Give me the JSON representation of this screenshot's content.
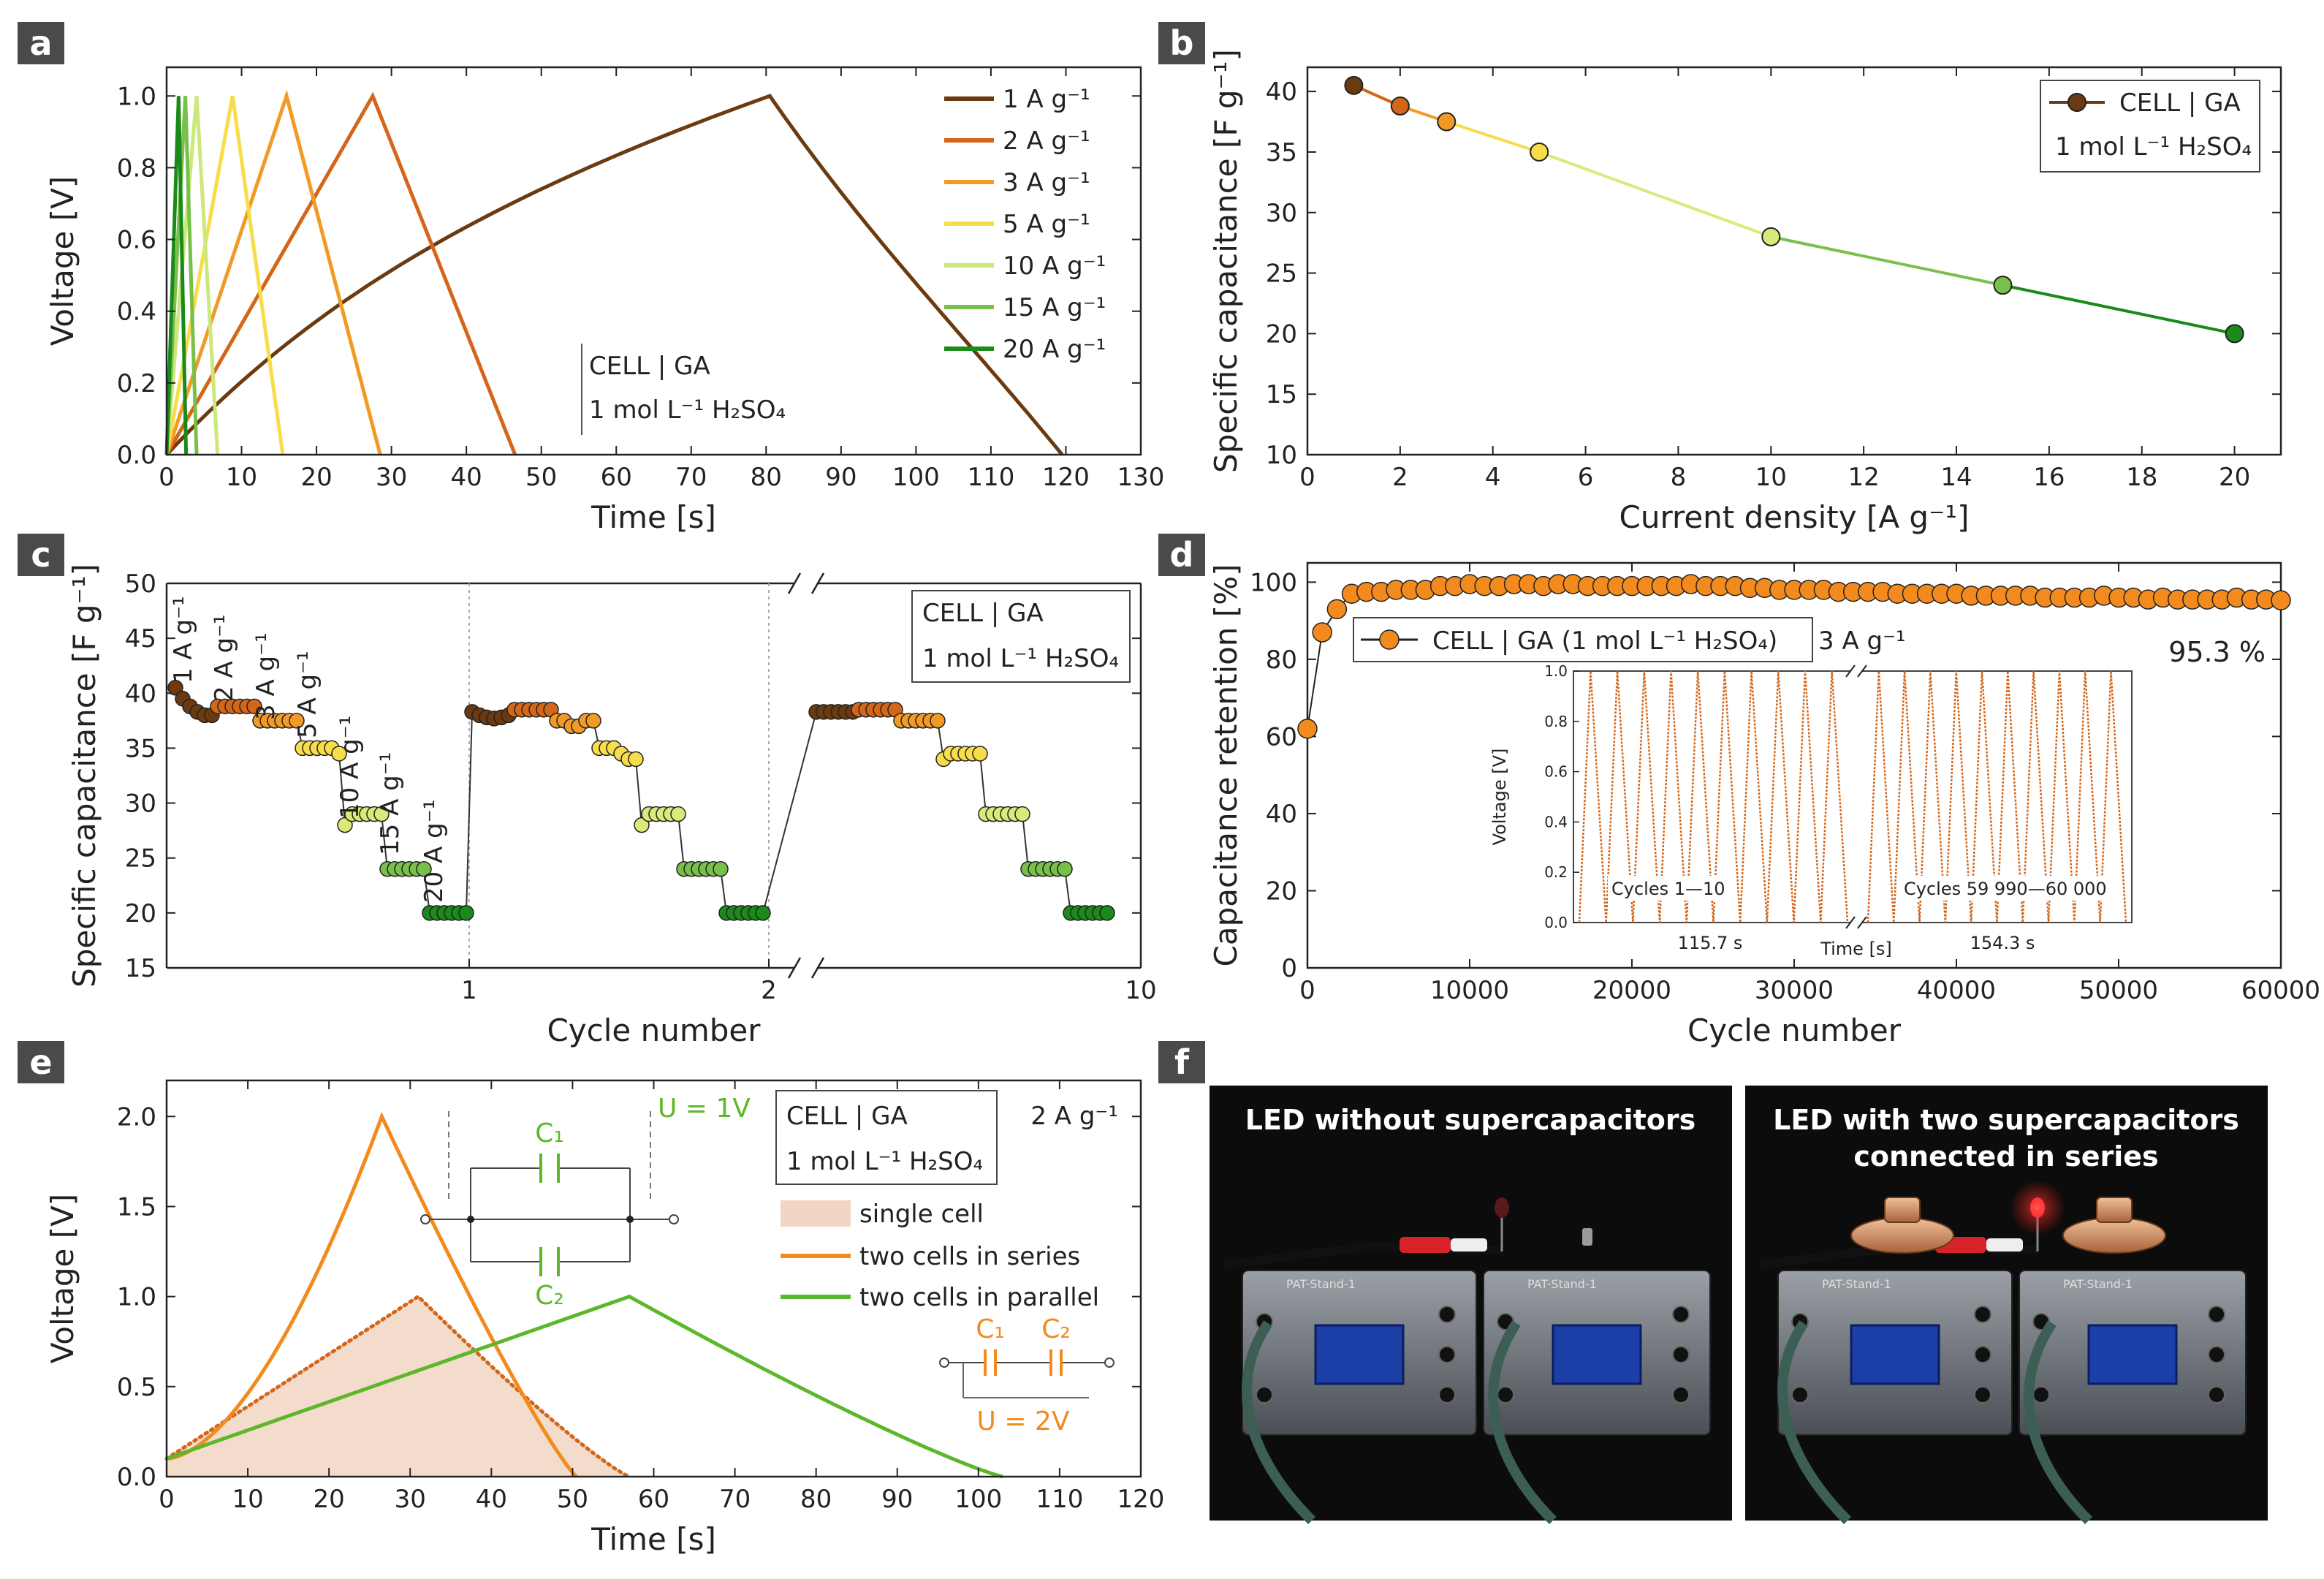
{
  "panels": {
    "a": {
      "label": "a",
      "chart_data": {
        "type": "line",
        "xlabel": "Time [s]",
        "ylabel": "Voltage [V]",
        "xlim": [
          0,
          130
        ],
        "ylim": [
          0,
          1.08
        ],
        "xticks": [
          "0",
          "10",
          "20",
          "30",
          "40",
          "50",
          "60",
          "70",
          "80",
          "90",
          "100",
          "110",
          "120",
          "130"
        ],
        "yticks": [
          "0.0",
          "0.2",
          "0.4",
          "0.6",
          "0.8",
          "1.0"
        ],
        "box_text": [
          "CELL | GA",
          "1 mol L⁻¹ H₂SO₄"
        ],
        "series": [
          {
            "name": "1 A g⁻¹",
            "color": "#6b3a10",
            "peak": [
              80.5,
              1.0
            ],
            "end": 119.5
          },
          {
            "name": "2 A g⁻¹",
            "color": "#d4661a",
            "peak": [
              27.5,
              1.0
            ],
            "end": 46.5
          },
          {
            "name": "3 A g⁻¹",
            "color": "#f29a26",
            "peak": [
              16.0,
              1.0
            ],
            "end": 28.5
          },
          {
            "name": "5 A g⁻¹",
            "color": "#f7dd4a",
            "peak": [
              8.8,
              1.0
            ],
            "end": 15.5
          },
          {
            "name": "10 A g⁻¹",
            "color": "#cde87a",
            "peak": [
              4.0,
              1.0
            ],
            "end": 6.8
          },
          {
            "name": "15 A g⁻¹",
            "color": "#79c04a",
            "peak": [
              2.5,
              1.0
            ],
            "end": 4.0
          },
          {
            "name": "20 A g⁻¹",
            "color": "#1a8a1a",
            "peak": [
              1.6,
              1.0
            ],
            "end": 2.6
          }
        ]
      }
    },
    "b": {
      "label": "b",
      "chart_data": {
        "type": "line",
        "xlabel": "Current density [A g⁻¹]",
        "ylabel": "Specific capacitance [F g⁻¹]",
        "xlim": [
          0,
          21
        ],
        "ylim": [
          10,
          42
        ],
        "xticks": [
          "0",
          "2",
          "4",
          "6",
          "8",
          "10",
          "12",
          "14",
          "16",
          "18",
          "20"
        ],
        "yticks": [
          "10",
          "15",
          "20",
          "25",
          "30",
          "35",
          "40"
        ],
        "legend": [
          "CELL | GA",
          "1 mol L⁻¹ H₂SO₄"
        ],
        "x": [
          1,
          2,
          3,
          5,
          10,
          15,
          20
        ],
        "y": [
          40.5,
          38.8,
          37.5,
          35.0,
          28.0,
          24.0,
          20.0
        ],
        "colors": [
          "#6b3a10",
          "#d4661a",
          "#f29a26",
          "#f7dd4a",
          "#dbe97a",
          "#79c04a",
          "#1a8a1a"
        ]
      }
    },
    "c": {
      "label": "c",
      "chart_data": {
        "type": "scatter",
        "xlabel": "Cycle number",
        "ylabel": "Specific capacitance [F g⁻¹]",
        "ylim": [
          15,
          50
        ],
        "xticks": [
          "1",
          "2",
          "10"
        ],
        "yticks": [
          "15",
          "20",
          "25",
          "30",
          "35",
          "40",
          "45",
          "50"
        ],
        "legend": [
          "CELL | GA",
          "1 mol L⁻¹ H₂SO₄"
        ],
        "rate_labels": [
          "1 A g⁻¹",
          "2 A g⁻¹",
          "3 A g⁻¹",
          "5 A g⁻¹",
          "10 A g⁻¹",
          "15 A g⁻¹",
          "20 A g⁻¹"
        ],
        "groups": [
          {
            "values": [
              40.5,
              39.5,
              38.8,
              38.3,
              38.0,
              38.0
            ],
            "color": "#6b3a10"
          },
          {
            "values": [
              38.8,
              38.8,
              38.8,
              38.8,
              38.8,
              38.8
            ],
            "color": "#d4661a"
          },
          {
            "values": [
              37.5,
              37.5,
              37.5,
              37.5,
              37.5,
              37.5
            ],
            "color": "#f29a26"
          },
          {
            "values": [
              35.0,
              35.0,
              35.0,
              35.0,
              35.0,
              34.5
            ],
            "color": "#f7dd4a"
          },
          {
            "values": [
              28.0,
              29.0,
              29.0,
              29.0,
              29.0,
              29.0
            ],
            "color": "#dbe97a"
          },
          {
            "values": [
              24.0,
              24.0,
              24.0,
              24.0,
              24.0,
              24.0
            ],
            "color": "#79c04a"
          },
          {
            "values": [
              20.0,
              20.0,
              20.0,
              20.0,
              20.0,
              20.0
            ],
            "color": "#1a8a1a"
          },
          {
            "values": [
              38.3,
              38.0,
              37.8,
              37.7,
              37.8,
              38.0
            ],
            "color": "#6b3a10"
          },
          {
            "values": [
              38.5,
              38.5,
              38.5,
              38.5,
              38.5,
              38.5
            ],
            "color": "#d4661a"
          },
          {
            "values": [
              37.5,
              37.5,
              37.0,
              37.0,
              37.5,
              37.5
            ],
            "color": "#f29a26"
          },
          {
            "values": [
              35.0,
              35.0,
              35.0,
              34.5,
              34.0,
              34.0
            ],
            "color": "#f7dd4a"
          },
          {
            "values": [
              28.0,
              29.0,
              29.0,
              29.0,
              29.0,
              29.0
            ],
            "color": "#dbe97a"
          },
          {
            "values": [
              24.0,
              24.0,
              24.0,
              24.0,
              24.0,
              24.0
            ],
            "color": "#79c04a"
          },
          {
            "values": [
              20.0,
              20.0,
              20.0,
              20.0,
              20.0,
              20.0
            ],
            "color": "#1a8a1a"
          },
          {
            "values": [
              38.3,
              38.3,
              38.3,
              38.3,
              38.3,
              38.3
            ],
            "color": "#6b3a10"
          },
          {
            "values": [
              38.5,
              38.5,
              38.5,
              38.5,
              38.5,
              38.5
            ],
            "color": "#d4661a"
          },
          {
            "values": [
              37.5,
              37.5,
              37.5,
              37.5,
              37.5,
              37.5
            ],
            "color": "#f29a26"
          },
          {
            "values": [
              34.0,
              34.5,
              34.5,
              34.5,
              34.5,
              34.5
            ],
            "color": "#f7dd4a"
          },
          {
            "values": [
              29.0,
              29.0,
              29.0,
              29.0,
              29.0,
              29.0
            ],
            "color": "#dbe97a"
          },
          {
            "values": [
              24.0,
              24.0,
              24.0,
              24.0,
              24.0,
              24.0
            ],
            "color": "#79c04a"
          },
          {
            "values": [
              20.0,
              20.0,
              20.0,
              20.0,
              20.0,
              20.0
            ],
            "color": "#1a8a1a"
          }
        ]
      }
    },
    "d": {
      "label": "d",
      "chart_data": {
        "type": "scatter",
        "xlabel": "Cycle number",
        "ylabel": "Capacitance retention [%]",
        "xlim": [
          0,
          60000
        ],
        "ylim": [
          0,
          105
        ],
        "xticks": [
          "0",
          "10000",
          "20000",
          "30000",
          "40000",
          "50000",
          "60000"
        ],
        "yticks": [
          "0",
          "20",
          "40",
          "60",
          "80",
          "100"
        ],
        "legend": "CELL | GA (1 mol L⁻¹ H₂SO₄)",
        "rate": "3 A g⁻¹",
        "final_retention": "95.3 %",
        "color": "#f28a1e",
        "y": [
          62,
          87,
          93,
          97,
          97.5,
          97.5,
          98,
          98,
          98,
          99,
          99,
          99.5,
          99,
          99,
          99.5,
          99.5,
          99,
          99.5,
          99.5,
          99,
          99,
          99,
          99,
          99,
          99,
          99,
          99.5,
          99,
          99,
          99,
          98.5,
          98.5,
          98,
          98,
          98,
          98,
          97.5,
          97.5,
          97.5,
          97.5,
          97,
          97,
          97,
          97,
          97,
          96.5,
          96.5,
          96.5,
          96.5,
          96.5,
          96,
          96,
          96,
          96,
          96.5,
          96,
          96,
          95.5,
          96,
          95.5,
          95.5,
          95.5,
          95.5,
          96,
          95.5,
          95.5,
          95.3
        ],
        "inset": {
          "ylabel": "Voltage [V]",
          "xlabel": "Time [s]",
          "yticks": [
            "0.0",
            "0.2",
            "0.4",
            "0.6",
            "0.8",
            "1.0"
          ],
          "left_label": "Cycles 1—10",
          "right_label": "Cycles 59 990—60 000",
          "left_time": "115.7 s",
          "right_time": "154.3 s",
          "cycles": 10
        }
      }
    },
    "e": {
      "label": "e",
      "chart_data": {
        "type": "line",
        "xlabel": "Time [s]",
        "ylabel": "Voltage [V]",
        "xlim": [
          0,
          120
        ],
        "ylim": [
          0,
          2.2
        ],
        "xticks": [
          "0",
          "10",
          "20",
          "30",
          "40",
          "50",
          "60",
          "70",
          "80",
          "90",
          "100",
          "110",
          "120"
        ],
        "yticks": [
          "0.0",
          "0.5",
          "1.0",
          "1.5",
          "2.0"
        ],
        "box_text": [
          "CELL | GA",
          "1 mol L⁻¹ H₂SO₄"
        ],
        "rate": "2 A g⁻¹",
        "legend": [
          "single cell",
          "two cells in series",
          "two cells in parallel"
        ],
        "colors": {
          "single": "#f2d6c4",
          "single_line": "#d4661a",
          "series": "#f28a1e",
          "parallel": "#5cb82a"
        },
        "series": [
          {
            "name": "two cells in series",
            "peak": [
              26.5,
              2.0
            ],
            "end": 50.5
          },
          {
            "name": "two cells in parallel",
            "peak": [
              57.0,
              1.0
            ],
            "end": 103.0
          },
          {
            "name": "single cell",
            "peak": [
              31.0,
              1.0
            ],
            "end": 57.0
          }
        ],
        "circuit_parallel": {
          "c1": "C₁",
          "c2": "C₂",
          "voltage": "U = 1V"
        },
        "circuit_series": {
          "c1": "C₁",
          "c2": "C₂",
          "voltage": "U = 2V"
        }
      }
    },
    "f": {
      "label": "f",
      "photo_left_caption": "LED without supercapacitors",
      "photo_right_caption_1": "LED with two supercapacitors",
      "photo_right_caption_2": "connected in series",
      "device_label": "PAT-Stand-1"
    }
  }
}
